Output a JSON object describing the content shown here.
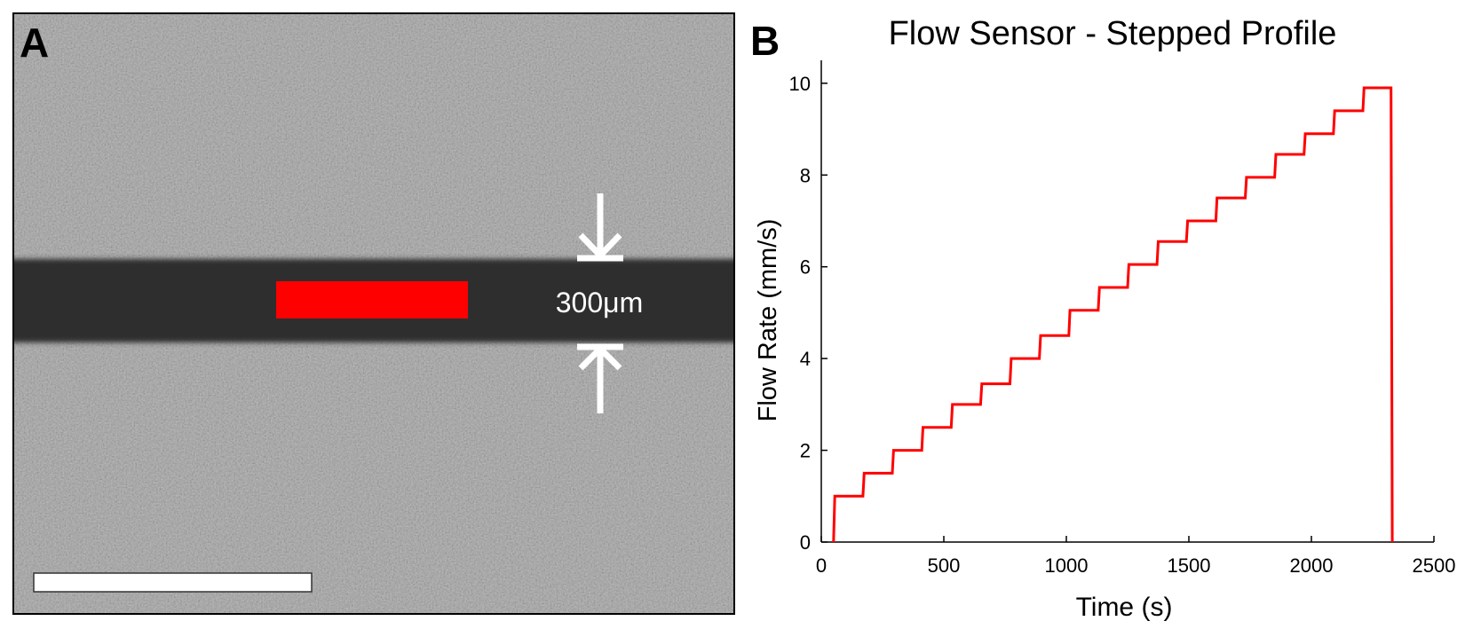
{
  "panel_a": {
    "label": "A",
    "scale_annotation": "300μm",
    "colors": {
      "channel": "#2e2e2e",
      "marker": "#ff0000",
      "background": "#9a9a9a",
      "arrow": "#ffffff"
    }
  },
  "panel_b": {
    "label": "B"
  },
  "chart_data": {
    "type": "line",
    "title": "Flow Sensor - Stepped Profile",
    "xlabel": "Time (s)",
    "ylabel": "Flow Rate (mm/s)",
    "xlim": [
      0,
      2500
    ],
    "ylim": [
      0,
      10.5
    ],
    "xticks": [
      0,
      500,
      1000,
      1500,
      2000,
      2500
    ],
    "yticks": [
      0,
      2,
      4,
      6,
      8,
      10
    ],
    "grid": false,
    "color": "#ff0000",
    "series": [
      {
        "x": [
          50,
          55,
          170,
          175,
          290,
          295,
          410,
          415,
          530,
          535,
          650,
          655,
          770,
          775,
          890,
          895,
          1010,
          1015,
          1130,
          1135,
          1250,
          1255,
          1370,
          1375,
          1490,
          1495,
          1610,
          1615,
          1730,
          1735,
          1850,
          1855,
          1970,
          1975,
          2090,
          2095,
          2210,
          2215,
          2325,
          2330
        ],
        "y": [
          0,
          1.0,
          1.0,
          1.5,
          1.5,
          2.0,
          2.0,
          2.5,
          2.5,
          3.0,
          3.0,
          3.45,
          3.45,
          4.0,
          4.0,
          4.5,
          4.5,
          5.05,
          5.05,
          5.55,
          5.55,
          6.05,
          6.05,
          6.55,
          6.55,
          7.0,
          7.0,
          7.5,
          7.5,
          7.95,
          7.95,
          8.45,
          8.45,
          8.9,
          8.9,
          9.4,
          9.4,
          9.9,
          9.9,
          0
        ]
      }
    ]
  }
}
